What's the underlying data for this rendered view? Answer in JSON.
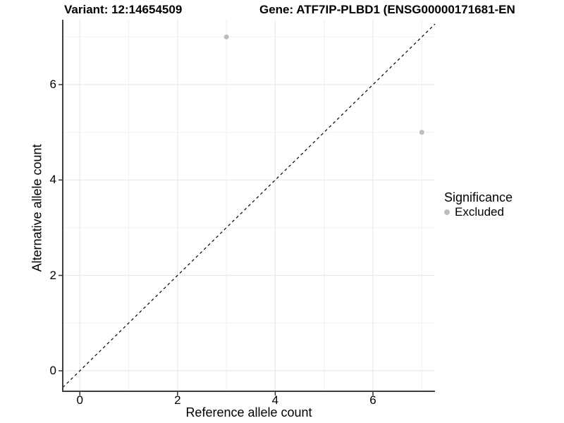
{
  "chart_data": {
    "type": "scatter",
    "title_left": "Variant: 12:14654509",
    "title_right": "Gene: ATF7IP-PLBD1 (ENSG00000171681-EN",
    "xlabel": "Reference allele count",
    "ylabel": "Alternative allele count",
    "x_tick_labels": [
      "0",
      "2",
      "4",
      "6"
    ],
    "x_tick_values": [
      0,
      2,
      4,
      6
    ],
    "y_tick_labels": [
      "0",
      "2",
      "4",
      "6"
    ],
    "y_tick_values": [
      0,
      2,
      4,
      6
    ],
    "xlim": [
      -0.35,
      7.27
    ],
    "ylim": [
      -0.43,
      7.36
    ],
    "grid_interval": 1,
    "grid_on": true,
    "identity_line": {
      "slope": 1,
      "intercept": 0,
      "style": "dashed",
      "color": "#000000"
    },
    "series": [
      {
        "name": "Excluded",
        "color": "#bdbdbd",
        "points": [
          [
            3,
            7
          ],
          [
            7,
            5
          ]
        ]
      }
    ],
    "legend": {
      "title": "Significance",
      "position": "right",
      "items": [
        {
          "label": "Excluded",
          "color": "#bdbdbd",
          "marker": "circle"
        }
      ]
    },
    "colors": {
      "grid_major": "#e9e9e9",
      "grid_minor": "#efefef",
      "axis_line": "#404040",
      "tick_mark": "#333333",
      "text": "#000000"
    }
  }
}
